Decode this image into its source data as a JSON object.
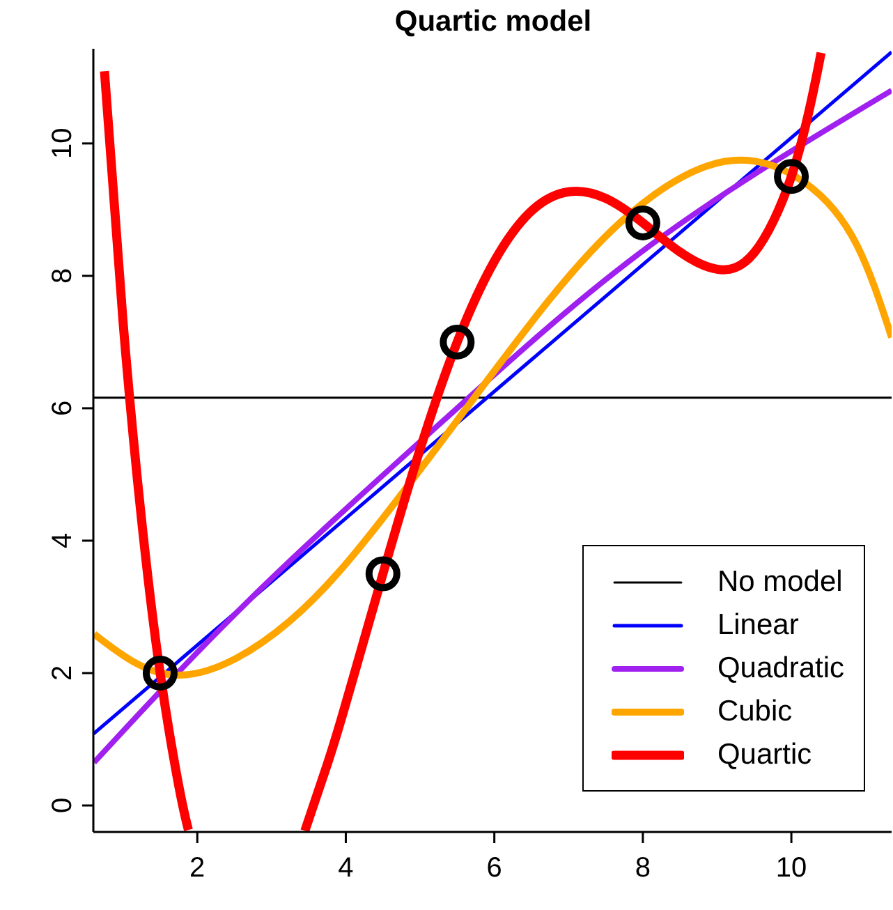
{
  "chart_data": {
    "type": "line",
    "title": "Quartic model",
    "xlim": [
      0.6,
      11.35
    ],
    "ylim": [
      -0.4,
      11.43
    ],
    "xticks": [
      2,
      4,
      6,
      8,
      10
    ],
    "yticks": [
      0,
      2,
      4,
      6,
      8,
      10
    ],
    "grid": false,
    "legend": "bottom right",
    "marker": "none",
    "line_style": "solid",
    "series": [
      {
        "type": "scatter",
        "marker": "circle",
        "color": "#000000",
        "x": [
          1.5,
          4.5,
          5.5,
          8,
          10
        ],
        "values": [
          2,
          3.5,
          7,
          8.8,
          9.5
        ]
      },
      {
        "name": "No model",
        "color": "#000000",
        "x": [
          0.6,
          11.35
        ],
        "values": [
          6.16,
          6.16
        ]
      },
      {
        "name": "Linear",
        "color": "#0000ff",
        "x": [
          0.6,
          11.35
        ],
        "values": [
          1.08,
          11.38
        ]
      },
      {
        "name": "Quadratic",
        "color": "#a020f0",
        "x": [
          0.61,
          2.76,
          5.33,
          8.11,
          11.35
        ],
        "values": [
          0.65,
          3.17,
          5.83,
          8.47,
          10.8
        ]
      },
      {
        "name": "Cubic",
        "color": "#ffa500",
        "x": [
          0.61,
          1.79,
          3.25,
          4.5,
          5.61,
          6.72,
          7.83,
          9.11,
          10.19,
          10.88,
          11.35
        ],
        "values": [
          2.59,
          1.97,
          2.79,
          4.34,
          5.98,
          7.61,
          8.94,
          9.73,
          9.4,
          8.47,
          7.07
        ]
      },
      {
        "name": "Quartic",
        "color": "#ff0000",
        "x": [
          0.75,
          1,
          1.25,
          1.5,
          1.75,
          1.88,
          null,
          3.45,
          3.75,
          4,
          4.5,
          5,
          5.5,
          6,
          6.5,
          7,
          7.5,
          8,
          8.5,
          9,
          9.5,
          10,
          10.3,
          10.4
        ],
        "values": [
          11.09,
          7.31,
          4.31,
          2,
          0.3,
          -0.37,
          null,
          -0.38,
          0.62,
          1.54,
          3.5,
          5.38,
          7,
          8.22,
          8.98,
          9.27,
          9.17,
          8.8,
          8.36,
          8.1,
          8.35,
          9.5,
          10.81,
          11.37
        ]
      }
    ]
  }
}
